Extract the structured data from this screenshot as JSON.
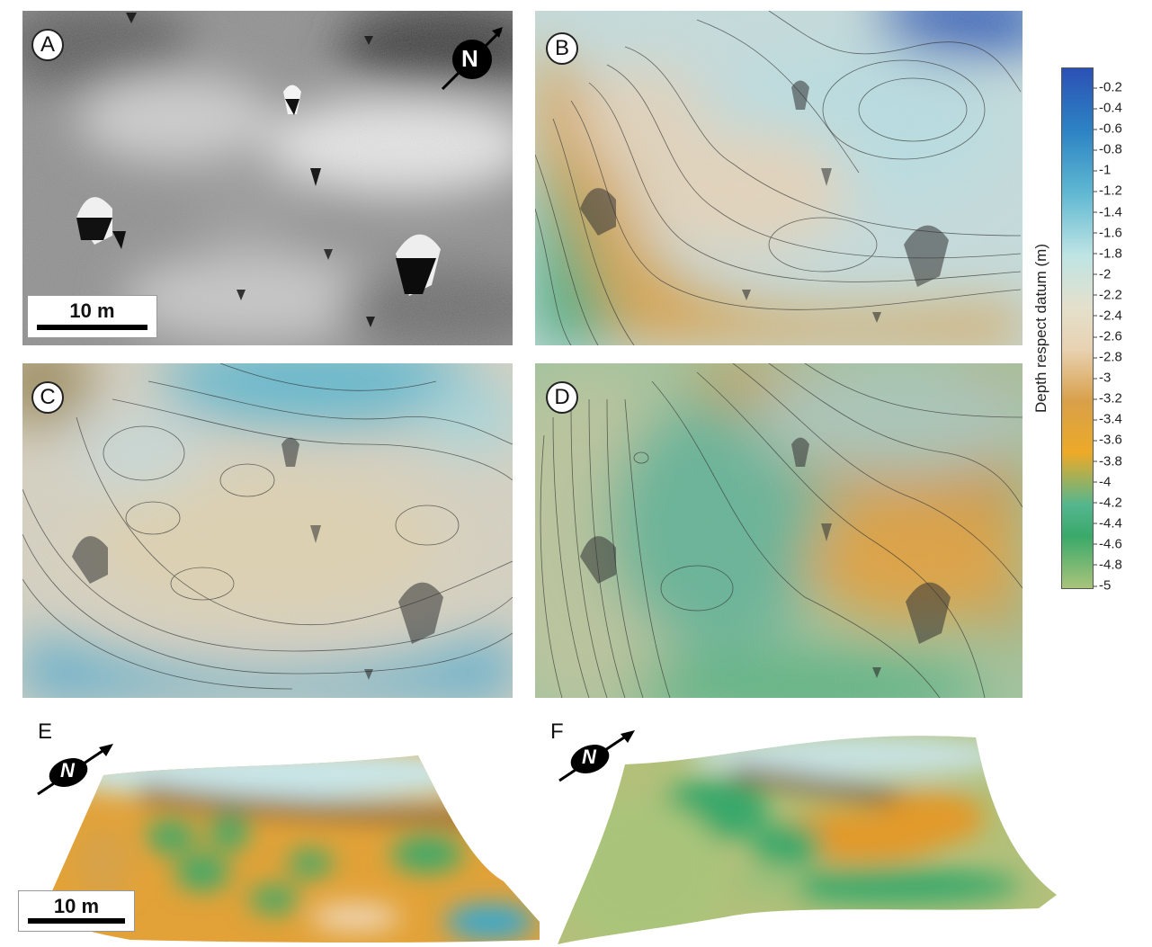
{
  "panels": {
    "a": {
      "label": "A"
    },
    "b": {
      "label": "B"
    },
    "c": {
      "label": "C"
    },
    "d": {
      "label": "D"
    },
    "e": {
      "label": "E"
    },
    "f": {
      "label": "F"
    }
  },
  "north": {
    "label": "N"
  },
  "scale_bar": {
    "label": "10 m"
  },
  "colorbar": {
    "title": "Depth respect datum (m)",
    "ticks": [
      "-0.2",
      "-0.4",
      "-0.6",
      "-0.8",
      "-1",
      "-1.2",
      "-1.4",
      "-1.6",
      "-1.8",
      "-2",
      "-2.2",
      "-2.4",
      "-2.6",
      "-2.8",
      "-3",
      "-3.2",
      "-3.4",
      "-3.6",
      "-3.8",
      "-4",
      "-4.2",
      "-4.4",
      "-4.6",
      "-4.8",
      "-5"
    ],
    "range": [
      -0.2,
      -5
    ],
    "colors": {
      "shallow": "#2b51b5",
      "mid_light": "#bfe4e4",
      "mid": "#e8d2b2",
      "orange": "#ecaa28",
      "green": "#3aa96a",
      "deep": "#a9c47a"
    }
  }
}
